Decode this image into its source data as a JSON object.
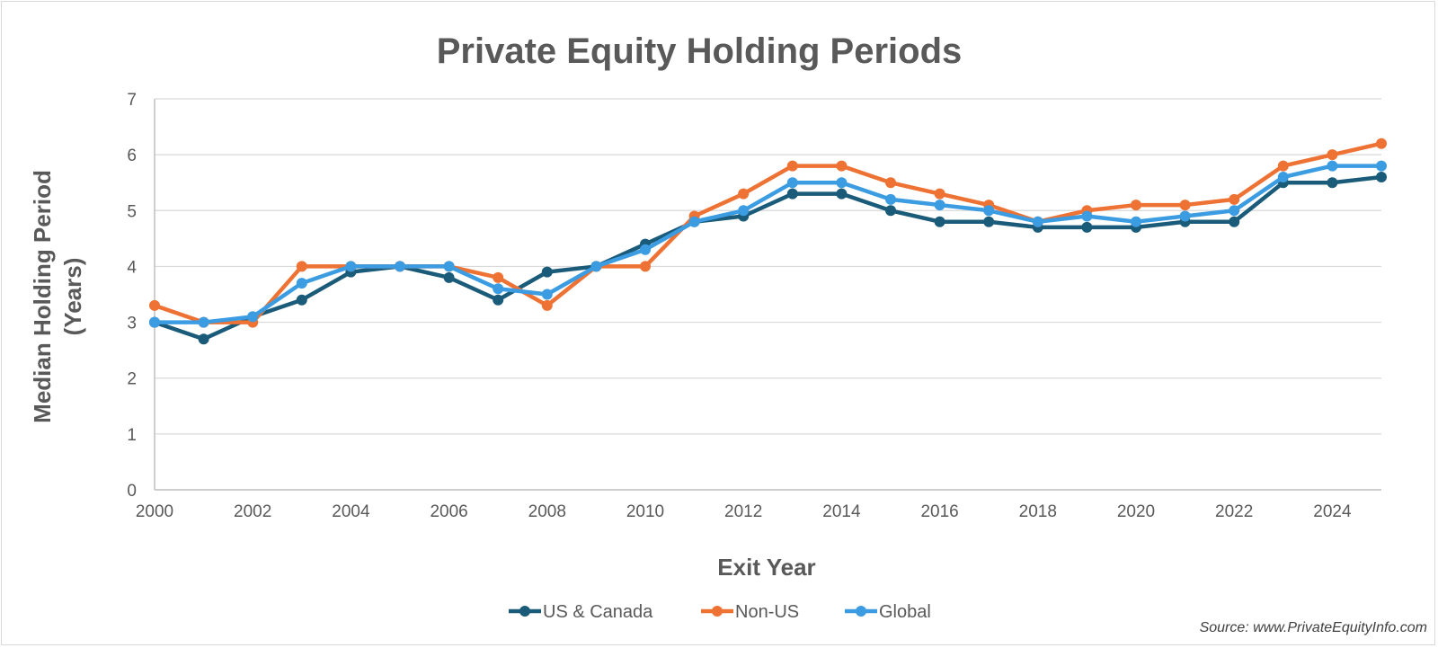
{
  "chart_data": {
    "type": "line",
    "title": "Private Equity Holding Periods",
    "xlabel": "Exit Year",
    "ylabel_lines": [
      "Median Holding Period",
      "(Years)"
    ],
    "x": [
      2000,
      2001,
      2002,
      2003,
      2004,
      2005,
      2006,
      2007,
      2008,
      2009,
      2010,
      2011,
      2012,
      2013,
      2014,
      2015,
      2016,
      2017,
      2018,
      2019,
      2020,
      2021,
      2022,
      2023,
      2024,
      2025
    ],
    "xlim": [
      2000,
      2025
    ],
    "ylim": [
      0,
      7
    ],
    "x_ticks": [
      "2000",
      "2002",
      "2004",
      "2006",
      "2008",
      "2010",
      "2012",
      "2014",
      "2016",
      "2018",
      "2020",
      "2022",
      "2024"
    ],
    "y_ticks": [
      "0",
      "1",
      "2",
      "3",
      "4",
      "5",
      "6",
      "7"
    ],
    "grid": true,
    "legend_position": "bottom",
    "series": [
      {
        "name": "US & Canada",
        "color": "#1a5b7a",
        "values": [
          3.0,
          2.7,
          3.1,
          3.4,
          3.9,
          4.0,
          3.8,
          3.4,
          3.9,
          4.0,
          4.4,
          4.8,
          4.9,
          5.3,
          5.3,
          5.0,
          4.8,
          4.8,
          4.7,
          4.7,
          4.7,
          4.8,
          4.8,
          5.5,
          5.5,
          5.6
        ]
      },
      {
        "name": "Non-US",
        "color": "#ed7234",
        "values": [
          3.3,
          3.0,
          3.0,
          4.0,
          4.0,
          4.0,
          4.0,
          3.8,
          3.3,
          4.0,
          4.0,
          4.9,
          5.3,
          5.8,
          5.8,
          5.5,
          5.3,
          5.1,
          4.8,
          5.0,
          5.1,
          5.1,
          5.2,
          5.8,
          6.0,
          6.2
        ]
      },
      {
        "name": "Global",
        "color": "#3c9ce2",
        "values": [
          3.0,
          3.0,
          3.1,
          3.7,
          4.0,
          4.0,
          4.0,
          3.6,
          3.5,
          4.0,
          4.3,
          4.8,
          5.0,
          5.5,
          5.5,
          5.2,
          5.1,
          5.0,
          4.8,
          4.9,
          4.8,
          4.9,
          5.0,
          5.6,
          5.8,
          5.8
        ]
      }
    ],
    "source": "Source: www.PrivateEquityInfo.com"
  }
}
